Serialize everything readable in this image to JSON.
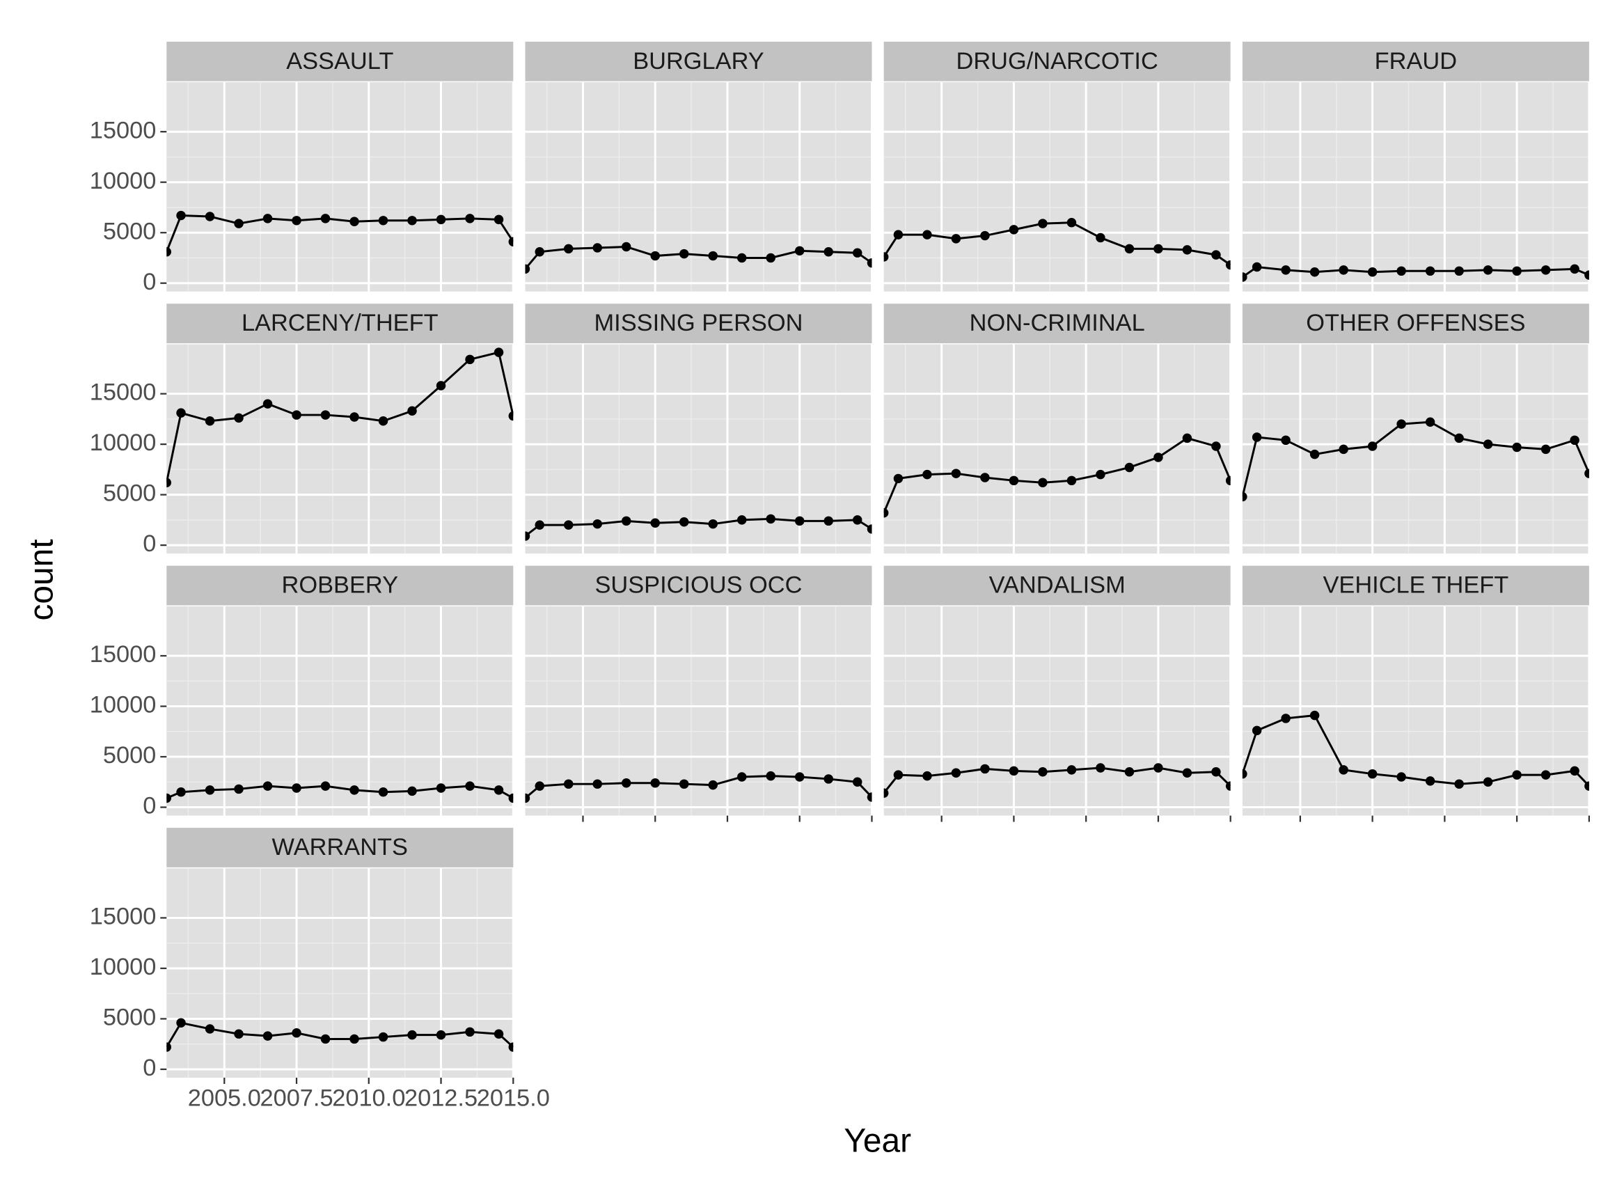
{
  "chart_data": {
    "type": "line",
    "xlabel": "Year",
    "ylabel": "count",
    "x": [
      2003,
      2003.5,
      2004.5,
      2005.5,
      2006.5,
      2007.5,
      2008.5,
      2009.5,
      2010.5,
      2011.5,
      2012.5,
      2013.5,
      2014.5,
      2015
    ],
    "xlim": [
      2003,
      2015
    ],
    "xticks": [
      {
        "value": 2005,
        "label": "2005.0"
      },
      {
        "value": 2007.5,
        "label": "2007.5"
      },
      {
        "value": 2010,
        "label": "2010.0"
      },
      {
        "value": 2012.5,
        "label": "2012.5"
      },
      {
        "value": 2015,
        "label": "2015.0"
      }
    ],
    "ylim": [
      -830,
      19900
    ],
    "yticks": [
      0,
      5000,
      10000,
      15000
    ],
    "grid": true,
    "series": [
      {
        "name": "ASSAULT",
        "color": "#000000",
        "values": [
          3100,
          6700,
          6600,
          5900,
          6400,
          6200,
          6400,
          6100,
          6200,
          6200,
          6300,
          6400,
          6300,
          4100
        ]
      },
      {
        "name": "BURGLARY",
        "color": "#000000",
        "values": [
          1400,
          3100,
          3400,
          3500,
          3600,
          2700,
          2900,
          2700,
          2500,
          2500,
          3200,
          3100,
          3000,
          2000
        ]
      },
      {
        "name": "DRUG/NARCOTIC",
        "color": "#000000",
        "values": [
          2600,
          4800,
          4800,
          4400,
          4700,
          5300,
          5900,
          6000,
          4500,
          3400,
          3400,
          3300,
          2800,
          1800
        ]
      },
      {
        "name": "FRAUD",
        "color": "#000000",
        "values": [
          600,
          1600,
          1300,
          1100,
          1300,
          1100,
          1200,
          1200,
          1200,
          1300,
          1200,
          1300,
          1400,
          800
        ]
      },
      {
        "name": "LARCENY/THEFT",
        "color": "#000000",
        "values": [
          6200,
          13100,
          12300,
          12600,
          14000,
          12900,
          12900,
          12700,
          12300,
          13300,
          15800,
          18400,
          19100,
          12800
        ]
      },
      {
        "name": "MISSING PERSON",
        "color": "#000000",
        "values": [
          900,
          2000,
          2000,
          2100,
          2400,
          2200,
          2300,
          2100,
          2500,
          2600,
          2400,
          2400,
          2500,
          1600
        ]
      },
      {
        "name": "NON-CRIMINAL",
        "color": "#000000",
        "values": [
          3200,
          6600,
          7000,
          7100,
          6700,
          6400,
          6200,
          6400,
          7000,
          7700,
          8700,
          10600,
          9800,
          6400
        ]
      },
      {
        "name": "OTHER OFFENSES",
        "color": "#000000",
        "values": [
          4800,
          10700,
          10400,
          9000,
          9500,
          9800,
          12000,
          12200,
          10600,
          10000,
          9700,
          9500,
          10400,
          7100
        ]
      },
      {
        "name": "ROBBERY",
        "color": "#000000",
        "values": [
          900,
          1500,
          1700,
          1800,
          2100,
          1900,
          2100,
          1700,
          1500,
          1600,
          1900,
          2100,
          1700,
          900
        ]
      },
      {
        "name": "SUSPICIOUS OCC",
        "color": "#000000",
        "values": [
          900,
          2100,
          2300,
          2300,
          2400,
          2400,
          2300,
          2200,
          3000,
          3100,
          3000,
          2800,
          2500,
          1000
        ]
      },
      {
        "name": "VANDALISM",
        "color": "#000000",
        "values": [
          1400,
          3200,
          3100,
          3400,
          3800,
          3600,
          3500,
          3700,
          3900,
          3500,
          3900,
          3400,
          3500,
          2100
        ]
      },
      {
        "name": "VEHICLE THEFT",
        "color": "#000000",
        "values": [
          3300,
          7600,
          8800,
          9100,
          3700,
          3300,
          3000,
          2600,
          2300,
          2500,
          3200,
          3200,
          3600,
          2100
        ]
      },
      {
        "name": "WARRANTS",
        "color": "#000000",
        "values": [
          2200,
          4600,
          4000,
          3500,
          3300,
          3600,
          3000,
          3000,
          3200,
          3400,
          3400,
          3700,
          3500,
          2200
        ]
      }
    ]
  }
}
